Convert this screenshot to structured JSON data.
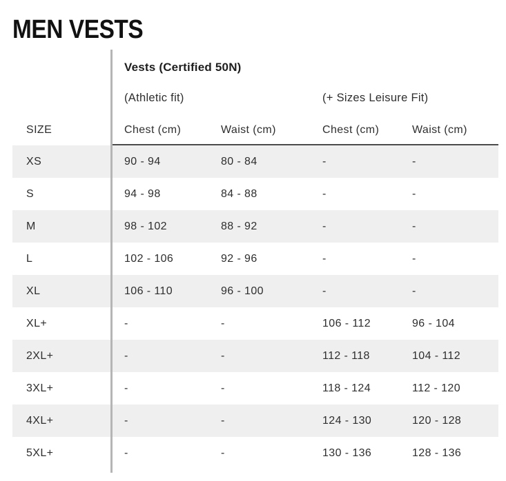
{
  "page": {
    "title": "MEN VESTS"
  },
  "table": {
    "title": "Vests (Certified 50N)",
    "groups": {
      "athletic": "(Athletic fit)",
      "leisure": "(+ Sizes Leisure Fit)"
    },
    "headers": {
      "size": "SIZE",
      "athletic_chest": "Chest (cm)",
      "athletic_waist": "Waist (cm)",
      "leisure_chest": "Chest (cm)",
      "leisure_waist": "Waist (cm)"
    },
    "rows": [
      {
        "size": "XS",
        "athletic_chest": "90 - 94",
        "athletic_waist": "80 - 84",
        "leisure_chest": "-",
        "leisure_waist": "-"
      },
      {
        "size": "S",
        "athletic_chest": "94 - 98",
        "athletic_waist": "84 - 88",
        "leisure_chest": "-",
        "leisure_waist": "-"
      },
      {
        "size": "M",
        "athletic_chest": "98 - 102",
        "athletic_waist": "88 - 92",
        "leisure_chest": "-",
        "leisure_waist": "-"
      },
      {
        "size": "L",
        "athletic_chest": "102 - 106",
        "athletic_waist": "92 - 96",
        "leisure_chest": "-",
        "leisure_waist": "-"
      },
      {
        "size": "XL",
        "athletic_chest": "106 - 110",
        "athletic_waist": "96 - 100",
        "leisure_chest": "-",
        "leisure_waist": "-"
      },
      {
        "size": "XL+",
        "athletic_chest": "-",
        "athletic_waist": "-",
        "leisure_chest": "106 - 112",
        "leisure_waist": "96 - 104"
      },
      {
        "size": "2XL+",
        "athletic_chest": "-",
        "athletic_waist": "-",
        "leisure_chest": "112 - 118",
        "leisure_waist": "104 - 112"
      },
      {
        "size": "3XL+",
        "athletic_chest": "-",
        "athletic_waist": "-",
        "leisure_chest": "118 - 124",
        "leisure_waist": "112 - 120"
      },
      {
        "size": "4XL+",
        "athletic_chest": "-",
        "athletic_waist": "-",
        "leisure_chest": "124 - 130",
        "leisure_waist": "120 - 128"
      },
      {
        "size": "5XL+",
        "athletic_chest": "-",
        "athletic_waist": "-",
        "leisure_chest": "130 - 136",
        "leisure_waist": "128 - 136"
      }
    ],
    "colors": {
      "zebra_stripe": "#efefef",
      "divider": "#b5b5b5",
      "header_line": "#4b4b4b",
      "text": "#2e2e2e",
      "title_text": "#111111"
    }
  }
}
